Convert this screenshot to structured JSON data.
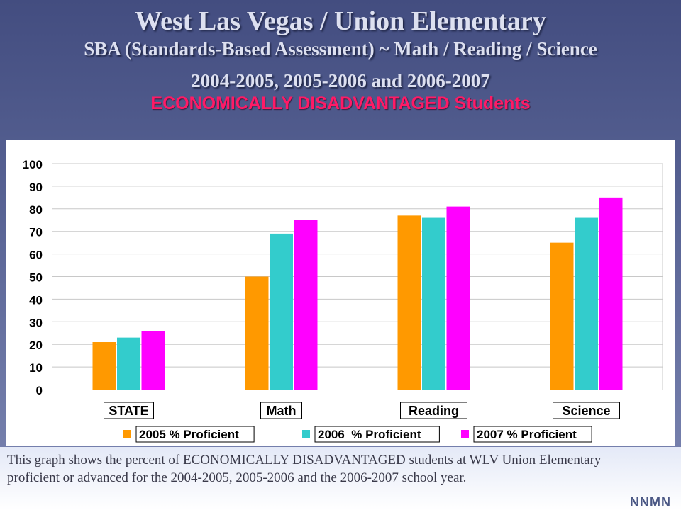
{
  "slide": {
    "title": "West Las Vegas / Union Elementary",
    "subtitle": "SBA (Standards-Based Assessment) ~ Math / Reading / Science",
    "years_line": "2004-2005, 2005-2006 and 2006-2007",
    "group_line": "ECONOMICALLY DISADVANTAGED Students"
  },
  "caption": {
    "before": "This graph shows the percent of ",
    "underlined": "ECONOMICALLY DISADVANTAGED",
    "after": " students at WLV Union Elementary proficient or advanced for the 2004-2005, 2005-2006 and the 2006-2007 school year."
  },
  "corner_mark": "NNMN",
  "chart_data": {
    "type": "bar",
    "categories": [
      "STATE",
      "Math",
      "Reading",
      "Science"
    ],
    "series": [
      {
        "name": "2005 % Proficient",
        "color": "#ff9900",
        "values": [
          21,
          50,
          77,
          65
        ]
      },
      {
        "name": "2006  % Proficient",
        "color": "#33cccc",
        "values": [
          23,
          69,
          76,
          76
        ]
      },
      {
        "name": "2007 % Proficient",
        "color": "#ff00ff",
        "values": [
          26,
          75,
          81,
          85
        ]
      }
    ],
    "ylim": [
      0,
      100
    ],
    "yticks": [
      0,
      10,
      20,
      30,
      40,
      50,
      60,
      70,
      80,
      90,
      100
    ],
    "grid": true,
    "legend_position": "bottom"
  }
}
